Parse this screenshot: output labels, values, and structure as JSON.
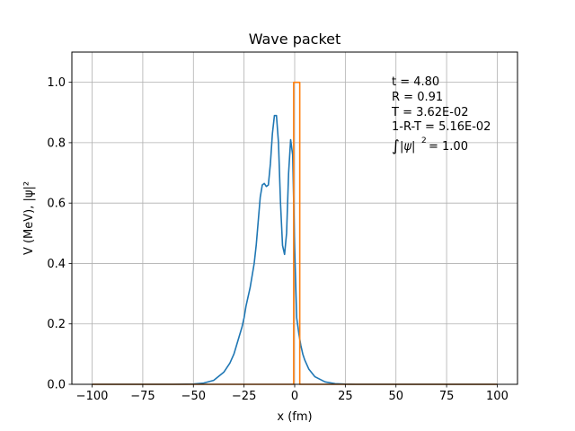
{
  "chart_data": {
    "type": "line",
    "title": "Wave packet",
    "xlabel": "x (fm)",
    "ylabel": "V (MeV), |ψ|²",
    "xlim": [
      -110,
      110
    ],
    "ylim": [
      0,
      1.1
    ],
    "xticks": [
      -100,
      -75,
      -50,
      -25,
      0,
      25,
      50,
      75,
      100
    ],
    "xtick_labels": [
      "−100",
      "−75",
      "−50",
      "−25",
      "0",
      "25",
      "50",
      "75",
      "100"
    ],
    "yticks": [
      0.0,
      0.2,
      0.4,
      0.6,
      0.8,
      1.0
    ],
    "ytick_labels": [
      "0.0",
      "0.2",
      "0.4",
      "0.6",
      "0.8",
      "1.0"
    ],
    "grid": true,
    "annotations": {
      "t": "t = 4.80",
      "R": "R = 0.91",
      "T": "T = 3.62E-02",
      "loss": "1-R-T = 5.16E-02",
      "norm_value": "= 1.00"
    },
    "series": [
      {
        "color": "#1f77b4",
        "x": [
          -100,
          -60,
          -50,
          -45,
          -40,
          -35,
          -32,
          -30,
          -28,
          -26,
          -25,
          -24,
          -22,
          -20,
          -19,
          -18,
          -17,
          -16,
          -15,
          -14,
          -13,
          -12,
          -11,
          -10,
          -9,
          -8,
          -7,
          -6,
          -5,
          -4,
          -3,
          -2,
          -1,
          0,
          1,
          2,
          3,
          4,
          5,
          7,
          10,
          15,
          20,
          25,
          30,
          40,
          100
        ],
        "y": [
          0,
          0,
          0.001,
          0.004,
          0.013,
          0.04,
          0.07,
          0.1,
          0.145,
          0.19,
          0.22,
          0.26,
          0.32,
          0.4,
          0.46,
          0.54,
          0.62,
          0.66,
          0.665,
          0.655,
          0.66,
          0.73,
          0.83,
          0.89,
          0.89,
          0.8,
          0.6,
          0.46,
          0.43,
          0.5,
          0.7,
          0.81,
          0.76,
          0.45,
          0.22,
          0.17,
          0.13,
          0.1,
          0.08,
          0.05,
          0.025,
          0.008,
          0.002,
          0.0005,
          0,
          0,
          0
        ]
      },
      {
        "color": "#ff7f0e",
        "x": [
          -100,
          -0.5,
          -0.5,
          2.5,
          2.5,
          100
        ],
        "y": [
          0,
          0,
          1,
          1,
          0,
          0
        ]
      }
    ]
  }
}
